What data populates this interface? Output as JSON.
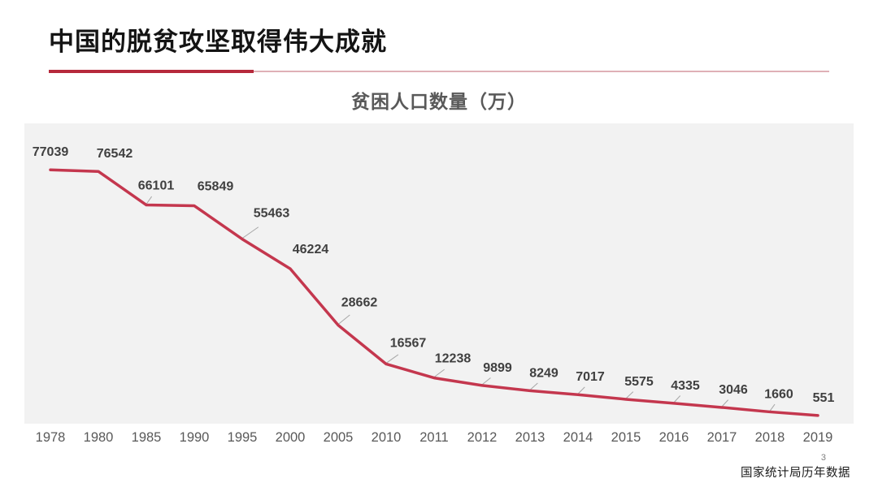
{
  "slide": {
    "title": "中国的脱贫攻坚取得伟大成就"
  },
  "footer": {
    "page_number": "3",
    "source": "国家统计局历年数据"
  },
  "colors": {
    "line": "#C4374E",
    "rule_red": "#B6293B",
    "rule_light": "#DFB0B6",
    "plot_bg": "#F2F2F2",
    "data_label": "#404040",
    "axis_label": "#595959",
    "leader_line": "#A6A6A6"
  },
  "chart_data": {
    "type": "line",
    "title": "贫困人口数量（万）",
    "categories": [
      "1978",
      "1980",
      "1985",
      "1990",
      "1995",
      "2000",
      "2005",
      "2010",
      "2011",
      "2012",
      "2013",
      "2014",
      "2015",
      "2016",
      "2017",
      "2018",
      "2019"
    ],
    "series": [
      {
        "name": "贫困人口数量（万）",
        "values": [
          77039,
          76542,
          66101,
          65849,
          55463,
          46224,
          28662,
          16567,
          12238,
          9899,
          8249,
          7017,
          5575,
          4335,
          3046,
          1660,
          551
        ]
      }
    ],
    "xlabel": "",
    "ylabel": "",
    "ylim": [
      0,
      90500
    ],
    "grid": false,
    "legend": "none",
    "data_labels": true,
    "source": "国家统计局历年数据"
  }
}
